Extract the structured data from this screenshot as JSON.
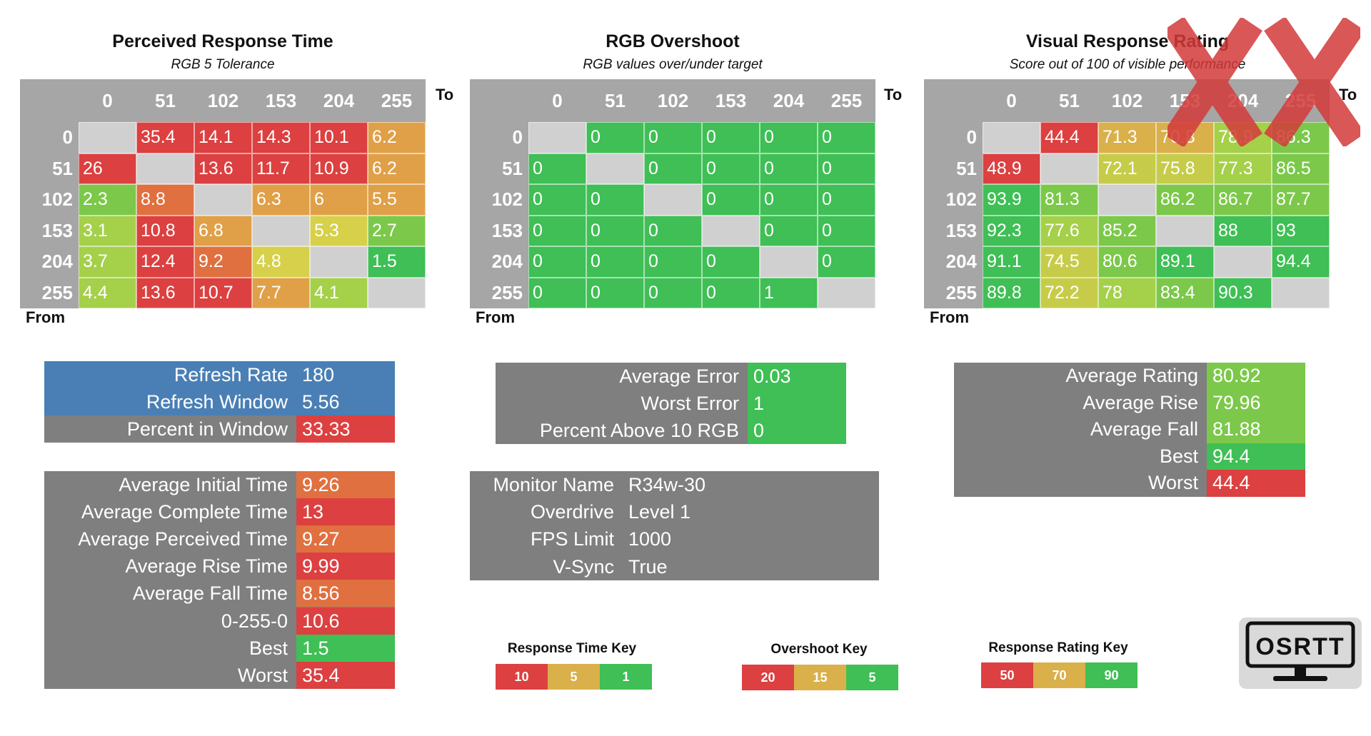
{
  "colors": {
    "red": "#dc4040",
    "orange": "#e07040",
    "amber": "#d9b04a",
    "yellow": "#d6d04a",
    "lime": "#a5d04a",
    "green": "#3fbf55",
    "grey_panel": "#7f7f7f",
    "blue_panel": "#4a7fb5",
    "diag": "#d0d0d0"
  },
  "axis": {
    "to": "To",
    "from": "From"
  },
  "chart_data": [
    {
      "type": "heatmap",
      "title": "Perceived Response Time",
      "subtitle": "RGB 5 Tolerance",
      "x": [
        "0",
        "51",
        "102",
        "153",
        "204",
        "255"
      ],
      "y": [
        "0",
        "51",
        "102",
        "153",
        "204",
        "255"
      ],
      "values": [
        [
          "",
          "35.4",
          "14.1",
          "14.3",
          "10.1",
          "6.2"
        ],
        [
          "26",
          "",
          "13.6",
          "11.7",
          "10.9",
          "6.2"
        ],
        [
          "2.3",
          "8.8",
          "",
          "6.3",
          "6",
          "5.5"
        ],
        [
          "3.1",
          "10.8",
          "6.8",
          "",
          "5.3",
          "2.7"
        ],
        [
          "3.7",
          "12.4",
          "9.2",
          "4.8",
          "",
          "1.5"
        ],
        [
          "4.4",
          "13.6",
          "10.7",
          "7.7",
          "4.1",
          ""
        ]
      ],
      "scale": "rt"
    },
    {
      "type": "heatmap",
      "title": "RGB Overshoot",
      "subtitle": "RGB values over/under target",
      "x": [
        "0",
        "51",
        "102",
        "153",
        "204",
        "255"
      ],
      "y": [
        "0",
        "51",
        "102",
        "153",
        "204",
        "255"
      ],
      "values": [
        [
          "",
          "0",
          "0",
          "0",
          "0",
          "0"
        ],
        [
          "0",
          "",
          "0",
          "0",
          "0",
          "0"
        ],
        [
          "0",
          "0",
          "",
          "0",
          "0",
          "0"
        ],
        [
          "0",
          "0",
          "0",
          "",
          "0",
          "0"
        ],
        [
          "0",
          "0",
          "0",
          "0",
          "",
          "0"
        ],
        [
          "0",
          "0",
          "0",
          "0",
          "1",
          ""
        ]
      ],
      "scale": "os"
    },
    {
      "type": "heatmap",
      "title": "Visual Response Rating",
      "subtitle": "Score out of 100 of visible performance",
      "x": [
        "0",
        "51",
        "102",
        "153",
        "204",
        "255"
      ],
      "y": [
        "0",
        "51",
        "102",
        "153",
        "204",
        "255"
      ],
      "values": [
        [
          "",
          "44.4",
          "71.3",
          "70.8",
          "78.9",
          "86.3"
        ],
        [
          "48.9",
          "",
          "72.1",
          "75.8",
          "77.3",
          "86.5"
        ],
        [
          "93.9",
          "81.3",
          "",
          "86.2",
          "86.7",
          "87.7"
        ],
        [
          "92.3",
          "77.6",
          "85.2",
          "",
          "88",
          "93"
        ],
        [
          "91.1",
          "74.5",
          "80.6",
          "89.1",
          "",
          "94.4"
        ],
        [
          "89.8",
          "72.2",
          "78",
          "83.4",
          "90.3",
          ""
        ]
      ],
      "scale": "vr"
    }
  ],
  "refresh_panel": [
    {
      "label": "Refresh Rate",
      "value": "180",
      "color": "#4a7fb5"
    },
    {
      "label": "Refresh Window",
      "value": "5.56",
      "color": "#4a7fb5"
    },
    {
      "label": "Percent in Window",
      "value": "33.33",
      "color": "#dc4040"
    }
  ],
  "time_panel": [
    {
      "label": "Average Initial Time",
      "value": "9.26",
      "color": "#e07040"
    },
    {
      "label": "Average Complete Time",
      "value": "13",
      "color": "#dc4040"
    },
    {
      "label": "Average Perceived Time",
      "value": "9.27",
      "color": "#e07040"
    },
    {
      "label": "Average Rise Time",
      "value": "9.99",
      "color": "#dc4040"
    },
    {
      "label": "Average Fall Time",
      "value": "8.56",
      "color": "#e07040"
    },
    {
      "label": "0-255-0",
      "value": "10.6",
      "color": "#dc4040"
    },
    {
      "label": "Best",
      "value": "1.5",
      "color": "#3fbf55"
    },
    {
      "label": "Worst",
      "value": "35.4",
      "color": "#dc4040"
    }
  ],
  "error_panel": [
    {
      "label": "Average Error",
      "value": "0.03",
      "color": "#3fbf55"
    },
    {
      "label": "Worst Error",
      "value": "1",
      "color": "#3fbf55"
    },
    {
      "label": "Percent Above 10 RGB",
      "value": "0",
      "color": "#3fbf55"
    }
  ],
  "monitor_panel": [
    {
      "label": "Monitor Name",
      "value": "R34w-30"
    },
    {
      "label": "Overdrive",
      "value": "Level 1"
    },
    {
      "label": "FPS Limit",
      "value": "1000"
    },
    {
      "label": "V-Sync",
      "value": "True"
    }
  ],
  "rating_panel": [
    {
      "label": "Average Rating",
      "value": "80.92",
      "color": "#7cc84a"
    },
    {
      "label": "Average Rise",
      "value": "79.96",
      "color": "#7cc84a"
    },
    {
      "label": "Average Fall",
      "value": "81.88",
      "color": "#7cc84a"
    },
    {
      "label": "Best",
      "value": "94.4",
      "color": "#3fbf55"
    },
    {
      "label": "Worst",
      "value": "44.4",
      "color": "#dc4040"
    }
  ],
  "keys": [
    {
      "title": "Response Time Key",
      "values": [
        "10",
        "5",
        "1"
      ]
    },
    {
      "title": "Overshoot Key",
      "values": [
        "20",
        "15",
        "5"
      ]
    },
    {
      "title": "Response Rating Key",
      "values": [
        "50",
        "70",
        "90"
      ]
    }
  ],
  "logo_text": "OSRTT"
}
